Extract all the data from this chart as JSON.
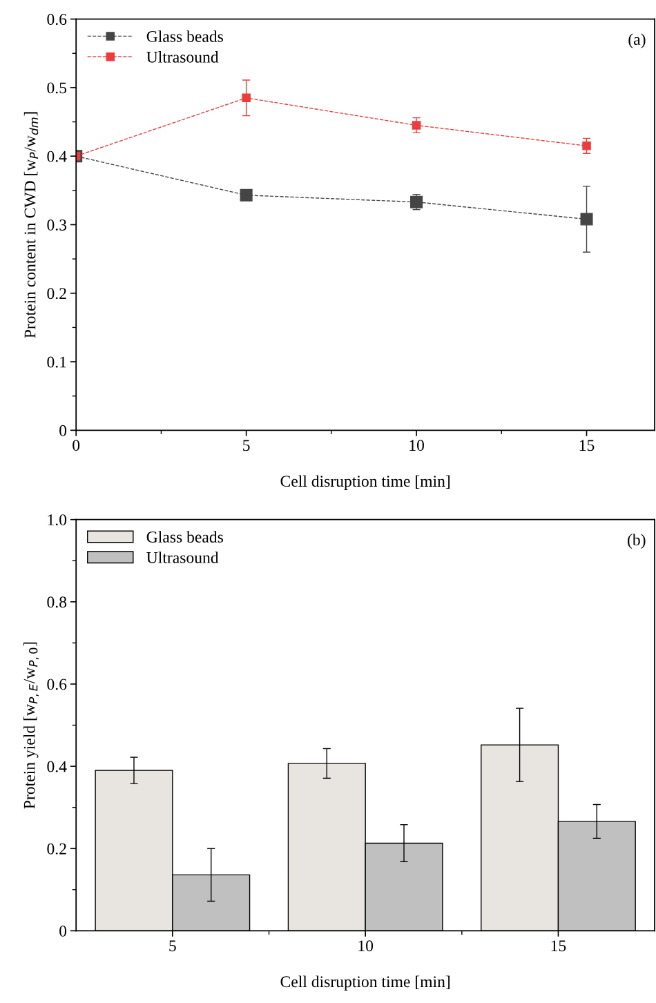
{
  "chart_data": [
    {
      "type": "line",
      "xlabel": "Cell disruption time [min]",
      "ylabel": "Protein content in CWD [w$_{P}$/w$_{dm}$]",
      "annotations": [
        "(a)"
      ],
      "x": [
        0,
        5,
        10,
        15
      ],
      "xlim": [
        0,
        17
      ],
      "xticks": [
        0,
        5,
        10,
        15
      ],
      "ylim": [
        0,
        0.6
      ],
      "yticks": [
        0,
        0.1,
        0.2,
        0.3,
        0.4,
        0.5,
        0.6
      ],
      "marker": "square",
      "line_style": "dashed",
      "legend": "top left",
      "series": [
        {
          "name": "Glass beads",
          "color": "#454545",
          "values": [
            0.4,
            0.343,
            0.333,
            0.308
          ],
          "errors": [
            null,
            null,
            0.011,
            0.048
          ]
        },
        {
          "name": "Ultrasound",
          "color": "#ef3b3b",
          "values": [
            0.4,
            0.485,
            0.445,
            0.415
          ],
          "errors": [
            null,
            0.026,
            0.011,
            0.011
          ]
        }
      ]
    },
    {
      "type": "bar",
      "xlabel": "Cell disruption time [min]",
      "ylabel": "Protein yield [w$_{P,E}$/w$_{P,0}$]",
      "annotations": [
        "(b)"
      ],
      "categories": [
        "5",
        "10",
        "15"
      ],
      "ylim": [
        0,
        1.0
      ],
      "yticks": [
        0,
        0.2,
        0.4,
        0.6,
        0.8,
        {
          "value": 1.0,
          "label": "1.0"
        }
      ],
      "legend": "top left",
      "series": [
        {
          "name": "Glass beads",
          "color": "#e8e5e1",
          "values": [
            0.39,
            0.407,
            0.452
          ],
          "errors": [
            0.032,
            0.036,
            0.089
          ]
        },
        {
          "name": "Ultrasound",
          "color": "#c0c0c0",
          "values": [
            0.136,
            0.213,
            0.266
          ],
          "errors": [
            0.064,
            0.045,
            0.041
          ]
        }
      ]
    }
  ]
}
